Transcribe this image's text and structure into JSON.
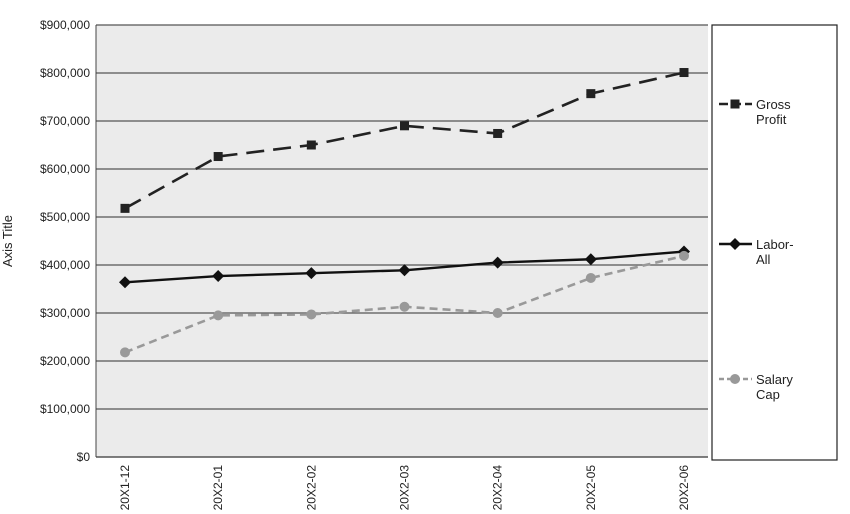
{
  "chart_data": {
    "type": "line",
    "categories": [
      "20X1-12",
      "20X2-01",
      "20X2-02",
      "20X2-03",
      "20X2-04",
      "20X2-05",
      "20X2-06"
    ],
    "ylabel": "Axis Title",
    "ylim": [
      0,
      900000
    ],
    "yticks": [
      0,
      100000,
      200000,
      300000,
      400000,
      500000,
      600000,
      700000,
      800000,
      900000
    ],
    "ytick_labels": [
      "$0",
      "$100,000",
      "$200,000",
      "$300,000",
      "$400,000",
      "$500,000",
      "$600,000",
      "$700,000",
      "$800,000",
      "$900,000"
    ],
    "grid": true,
    "legend_position": "right",
    "series": [
      {
        "name": "Gross Profit",
        "legend_lines": [
          "Gross",
          "Profit"
        ],
        "values": [
          518000,
          626000,
          650000,
          690000,
          674000,
          757000,
          801000
        ],
        "color": "#222222",
        "dash": "long-dash",
        "marker": "square"
      },
      {
        "name": "Labor-All",
        "legend_lines": [
          "Labor-",
          "All"
        ],
        "values": [
          364000,
          377000,
          383000,
          389000,
          405000,
          412000,
          428000
        ],
        "color": "#111111",
        "dash": "solid",
        "marker": "diamond"
      },
      {
        "name": "Salary Cap",
        "legend_lines": [
          "Salary",
          "Cap"
        ],
        "values": [
          218000,
          295000,
          297000,
          313000,
          300000,
          373000,
          419000
        ],
        "color": "#999999",
        "dash": "short-dash",
        "marker": "circle"
      }
    ],
    "plot_background": "#ebebeb",
    "grid_color": "#555555"
  }
}
